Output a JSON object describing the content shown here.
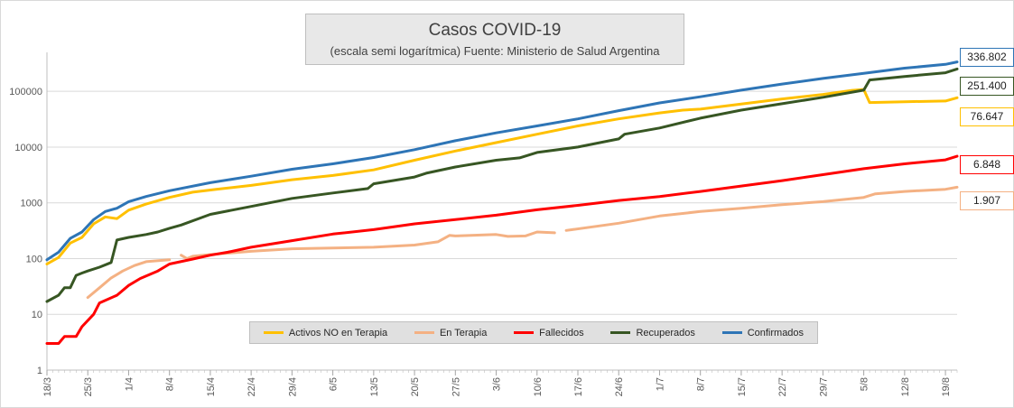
{
  "chart_data": {
    "type": "line",
    "title": "Casos COVID-19",
    "subtitle": "(escala semi logarítmica) Fuente: Ministerio de Salud  Argentina",
    "y_scale": "log",
    "ylim": [
      1,
      500000
    ],
    "y_ticks": [
      "1",
      "10",
      "100",
      "1000",
      "10000",
      "100000"
    ],
    "x_ticks": [
      "18/3",
      "25/3",
      "1/4",
      "8/4",
      "15/4",
      "22/4",
      "29/4",
      "6/5",
      "13/5",
      "20/5",
      "27/5",
      "3/6",
      "10/6",
      "17/6",
      "24/6",
      "1/7",
      "8/7",
      "15/7",
      "22/7",
      "29/7",
      "5/8",
      "12/8",
      "19/8"
    ],
    "x_start": "18/3",
    "x_end": "21/8",
    "grid": "horizontal",
    "legend_position": "bottom",
    "series": [
      {
        "name": "Activos NO en Terapia",
        "color": "#ffc000",
        "points": [
          [
            "18/3",
            80
          ],
          [
            "20/3",
            105
          ],
          [
            "22/3",
            190
          ],
          [
            "24/3",
            240
          ],
          [
            "26/3",
            420
          ],
          [
            "28/3",
            560
          ],
          [
            "30/3",
            520
          ],
          [
            "1/4",
            740
          ],
          [
            "4/4",
            950
          ],
          [
            "8/4",
            1250
          ],
          [
            "12/4",
            1550
          ],
          [
            "16/4",
            1750
          ],
          [
            "22/4",
            2050
          ],
          [
            "29/4",
            2600
          ],
          [
            "6/5",
            3100
          ],
          [
            "13/5",
            3900
          ],
          [
            "20/5",
            5800
          ],
          [
            "27/5",
            8500
          ],
          [
            "3/6",
            12000
          ],
          [
            "10/6",
            17000
          ],
          [
            "17/6",
            24000
          ],
          [
            "24/6",
            32000
          ],
          [
            "1/7",
            41000
          ],
          [
            "5/7",
            46000
          ],
          [
            "8/7",
            48000
          ],
          [
            "15/7",
            59000
          ],
          [
            "22/7",
            73000
          ],
          [
            "29/7",
            88000
          ],
          [
            "3/8",
            104000
          ],
          [
            "5/8",
            108000
          ],
          [
            "6/8",
            63000
          ],
          [
            "12/8",
            65000
          ],
          [
            "19/8",
            67000
          ],
          [
            "21/8",
            76647
          ]
        ]
      },
      {
        "name": "En Terapia",
        "color": "#f4b183",
        "points": [
          [
            "25/3",
            20
          ],
          [
            "27/3",
            30
          ],
          [
            "29/3",
            45
          ],
          [
            "31/3",
            60
          ],
          [
            "2/4",
            75
          ],
          [
            "4/4",
            88
          ],
          [
            "8/4",
            95
          ]
        ],
        "segments": [
          [
            [
              "10/4",
              115
            ],
            [
              "11/4",
              100
            ],
            [
              "12/4",
              110
            ],
            [
              "15/4",
              118
            ],
            [
              "22/4",
              135
            ],
            [
              "29/4",
              150
            ],
            [
              "6/5",
              155
            ],
            [
              "13/5",
              160
            ],
            [
              "20/5",
              175
            ],
            [
              "24/5",
              200
            ],
            [
              "26/5",
              260
            ],
            [
              "27/5",
              255
            ],
            [
              "3/6",
              270
            ],
            [
              "5/6",
              250
            ],
            [
              "8/6",
              255
            ],
            [
              "10/6",
              300
            ],
            [
              "13/6",
              290
            ]
          ],
          [
            [
              "15/6",
              320
            ],
            [
              "24/6",
              430
            ],
            [
              "1/7",
              580
            ],
            [
              "8/7",
              700
            ],
            [
              "15/7",
              800
            ],
            [
              "22/7",
              930
            ],
            [
              "29/7",
              1050
            ],
            [
              "5/8",
              1250
            ],
            [
              "7/8",
              1450
            ],
            [
              "12/8",
              1600
            ],
            [
              "19/8",
              1750
            ],
            [
              "21/8",
              1907
            ]
          ]
        ]
      },
      {
        "name": "Fallecidos",
        "color": "#ff0000",
        "points": [
          [
            "18/3",
            3
          ],
          [
            "20/3",
            3
          ],
          [
            "21/3",
            4
          ],
          [
            "23/3",
            4
          ],
          [
            "24/3",
            6
          ],
          [
            "26/3",
            10
          ],
          [
            "27/3",
            16
          ],
          [
            "30/3",
            22
          ],
          [
            "1/4",
            33
          ],
          [
            "3/4",
            44
          ],
          [
            "6/4",
            60
          ],
          [
            "8/4",
            80
          ],
          [
            "12/4",
            98
          ],
          [
            "15/4",
            115
          ],
          [
            "18/4",
            130
          ],
          [
            "22/4",
            160
          ],
          [
            "29/4",
            210
          ],
          [
            "6/5",
            275
          ],
          [
            "13/5",
            330
          ],
          [
            "20/5",
            420
          ],
          [
            "27/5",
            500
          ],
          [
            "3/6",
            600
          ],
          [
            "10/6",
            750
          ],
          [
            "17/6",
            900
          ],
          [
            "24/6",
            1100
          ],
          [
            "1/7",
            1300
          ],
          [
            "8/7",
            1600
          ],
          [
            "15/7",
            2000
          ],
          [
            "22/7",
            2500
          ],
          [
            "29/7",
            3200
          ],
          [
            "5/8",
            4100
          ],
          [
            "12/8",
            5000
          ],
          [
            "19/8",
            5900
          ],
          [
            "21/8",
            6848
          ]
        ]
      },
      {
        "name": "Recuperados",
        "color": "#375623",
        "points": [
          [
            "18/3",
            17
          ],
          [
            "20/3",
            22
          ],
          [
            "21/3",
            30
          ],
          [
            "22/3",
            30
          ],
          [
            "23/3",
            50
          ],
          [
            "24/3",
            55
          ],
          [
            "25/3",
            60
          ],
          [
            "27/3",
            70
          ],
          [
            "29/3",
            85
          ],
          [
            "30/3",
            215
          ],
          [
            "1/4",
            240
          ],
          [
            "4/4",
            270
          ],
          [
            "6/4",
            300
          ],
          [
            "8/4",
            350
          ],
          [
            "10/4",
            400
          ],
          [
            "15/4",
            620
          ],
          [
            "22/4",
            860
          ],
          [
            "29/4",
            1200
          ],
          [
            "6/5",
            1500
          ],
          [
            "12/5",
            1800
          ],
          [
            "13/5",
            2200
          ],
          [
            "20/5",
            2900
          ],
          [
            "22/5",
            3400
          ],
          [
            "27/5",
            4400
          ],
          [
            "3/6",
            5800
          ],
          [
            "7/6",
            6400
          ],
          [
            "10/6",
            8000
          ],
          [
            "17/6",
            10000
          ],
          [
            "24/6",
            14000
          ],
          [
            "25/6",
            17000
          ],
          [
            "1/7",
            22000
          ],
          [
            "8/7",
            33000
          ],
          [
            "15/7",
            46000
          ],
          [
            "22/7",
            60000
          ],
          [
            "29/7",
            78000
          ],
          [
            "5/8",
            105000
          ],
          [
            "6/8",
            160000
          ],
          [
            "12/8",
            185000
          ],
          [
            "19/8",
            215000
          ],
          [
            "21/8",
            251400
          ]
        ]
      },
      {
        "name": "Confirmados",
        "color": "#2e75b6",
        "points": [
          [
            "18/3",
            95
          ],
          [
            "20/3",
            130
          ],
          [
            "22/3",
            230
          ],
          [
            "24/3",
            300
          ],
          [
            "26/3",
            500
          ],
          [
            "28/3",
            700
          ],
          [
            "30/3",
            800
          ],
          [
            "1/4",
            1050
          ],
          [
            "4/4",
            1300
          ],
          [
            "8/4",
            1650
          ],
          [
            "15/4",
            2300
          ],
          [
            "22/4",
            3000
          ],
          [
            "29/4",
            4000
          ],
          [
            "6/5",
            5000
          ],
          [
            "13/5",
            6500
          ],
          [
            "20/5",
            9000
          ],
          [
            "27/5",
            13000
          ],
          [
            "3/6",
            18000
          ],
          [
            "10/6",
            24000
          ],
          [
            "17/6",
            32000
          ],
          [
            "24/6",
            45000
          ],
          [
            "1/7",
            62000
          ],
          [
            "8/7",
            80000
          ],
          [
            "15/7",
            105000
          ],
          [
            "22/7",
            135000
          ],
          [
            "29/7",
            170000
          ],
          [
            "5/8",
            210000
          ],
          [
            "12/8",
            260000
          ],
          [
            "19/8",
            305000
          ],
          [
            "21/8",
            336802
          ]
        ]
      }
    ],
    "last_values": [
      {
        "label": "336.802",
        "color": "#2e75b6"
      },
      {
        "label": "251.400",
        "color": "#375623"
      },
      {
        "label": "76.647",
        "color": "#ffc000"
      },
      {
        "label": "6.848",
        "color": "#ff0000"
      },
      {
        "label": "1.907",
        "color": "#f4b183"
      }
    ]
  }
}
